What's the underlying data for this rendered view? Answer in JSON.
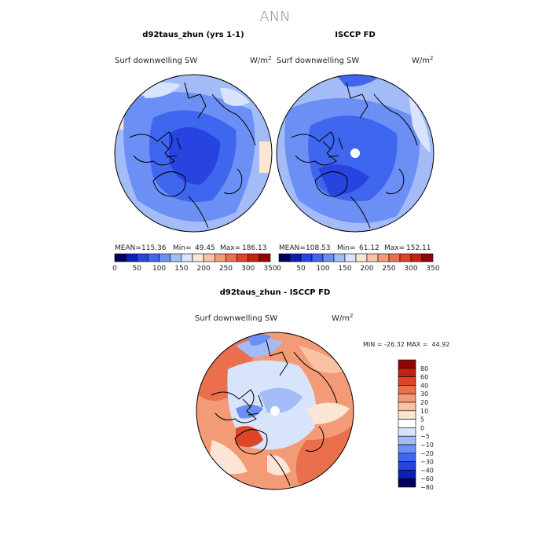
{
  "page_title": "ANN",
  "chart_data": [
    {
      "type": "heatmap",
      "projection": "north-polar-stereographic",
      "title": "d92taus_zhun (yrs 1-1)",
      "variable": "Surf downwelling SW",
      "units": "W/m",
      "units_exp": "2",
      "stats": {
        "mean": "115.36",
        "min": "49.45",
        "max": "186.13"
      },
      "stats_text": {
        "mean_label": "MEAN=",
        "min_label": "Min=",
        "max_label": "Max="
      },
      "colorbar_levels": [
        0,
        25,
        50,
        75,
        100,
        125,
        150,
        175,
        200,
        225,
        250,
        275,
        300,
        325,
        350
      ],
      "colorbar_tick_labels": [
        "0",
        "50",
        "100",
        "150",
        "200",
        "250",
        "300",
        "350"
      ],
      "missing_at_pole": false
    },
    {
      "type": "heatmap",
      "projection": "north-polar-stereographic",
      "title": "ISCCP FD",
      "variable": "Surf downwelling SW",
      "units": "W/m",
      "units_exp": "2",
      "stats": {
        "mean": "108.53",
        "min": "61.12",
        "max": "152.11"
      },
      "stats_text": {
        "mean_label": "MEAN=",
        "min_label": "Min=",
        "max_label": "Max="
      },
      "colorbar_levels": [
        0,
        25,
        50,
        75,
        100,
        125,
        150,
        175,
        200,
        225,
        250,
        275,
        300,
        325,
        350
      ],
      "colorbar_tick_labels": [
        "0",
        "50",
        "100",
        "150",
        "200",
        "250",
        "300",
        "350"
      ],
      "missing_at_pole": true
    },
    {
      "type": "heatmap",
      "projection": "north-polar-stereographic",
      "title": "d92taus_zhun - ISCCP FD",
      "variable": "Surf downwelling SW",
      "units": "W/m",
      "units_exp": "2",
      "stats": {
        "min": "-26.32",
        "max": "44.92"
      },
      "stats_text": {
        "label": "MIN = -26.32 MAX =  44.92"
      },
      "colorbar_levels": [
        -80,
        -60,
        -40,
        -30,
        -20,
        -10,
        -5,
        0,
        5,
        10,
        20,
        30,
        40,
        60,
        80
      ],
      "colorbar_tick_labels": [
        "80",
        "60",
        "40",
        "30",
        "20",
        "10",
        "5",
        "0",
        "−5",
        "−10",
        "−20",
        "−30",
        "−40",
        "−60",
        "−80"
      ],
      "missing_at_pole": true
    }
  ],
  "colors": {
    "abs_scale": [
      "#00005a",
      "#0a1fb4",
      "#2744e0",
      "#3f66ef",
      "#6b8ff5",
      "#a3bcf8",
      "#d8e4fc",
      "#fbe6d6",
      "#f8c3a4",
      "#f29b76",
      "#ea6f4c",
      "#dc4527",
      "#c2220f",
      "#8f0606"
    ],
    "diff_scale": [
      "#8f0606",
      "#c2220f",
      "#dc4527",
      "#ea6f4c",
      "#f29b76",
      "#f8c3a4",
      "#fbe6d6",
      "#ffffff",
      "#d8e4fc",
      "#a3bcf8",
      "#6b8ff5",
      "#3f66ef",
      "#2744e0",
      "#0a1fb4",
      "#00005a"
    ],
    "coast": "#000000"
  }
}
